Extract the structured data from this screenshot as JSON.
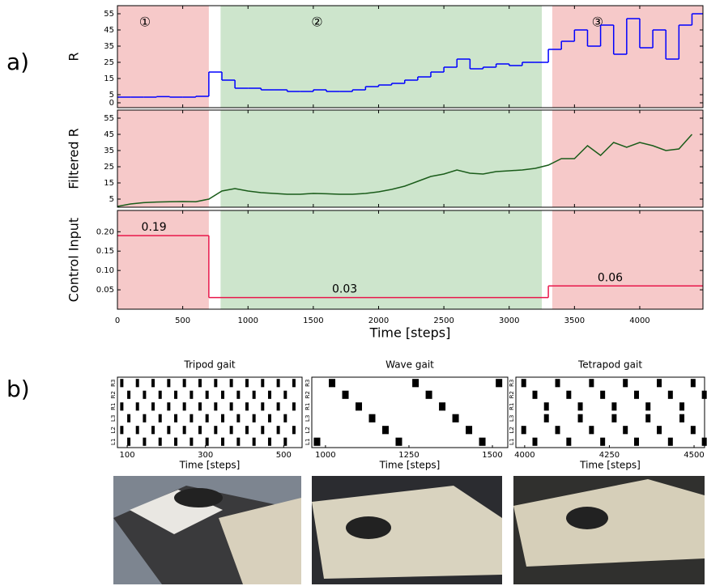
{
  "panel_labels": [
    "a)",
    "b)"
  ],
  "chart_data": [
    {
      "type": "step",
      "ylabel": "R",
      "xlim": [
        0,
        4484
      ],
      "ylim": [
        -3,
        60
      ],
      "yticks": [
        0,
        5,
        15,
        25,
        35,
        45,
        55
      ],
      "regions": [
        {
          "start": 0,
          "end": 700,
          "color": "#f6c9c9",
          "label": "①"
        },
        {
          "start": 790,
          "end": 3250,
          "color": "#cde5cc",
          "label": "②"
        },
        {
          "start": 3330,
          "end": 4484,
          "color": "#f6c9c9",
          "label": "③"
        }
      ],
      "x": [
        0,
        100,
        200,
        300,
        400,
        500,
        600,
        700,
        800,
        900,
        1000,
        1100,
        1200,
        1300,
        1400,
        1500,
        1600,
        1700,
        1800,
        1900,
        2000,
        2100,
        2200,
        2300,
        2400,
        2500,
        2600,
        2700,
        2800,
        2900,
        3000,
        3100,
        3200,
        3300,
        3400,
        3500,
        3600,
        3700,
        3800,
        3900,
        4000,
        4100,
        4200,
        4300,
        4400
      ],
      "series": [
        {
          "color": "#0000ff",
          "values": [
            3.5,
            3.5,
            3.5,
            3.8,
            3.5,
            3.5,
            4,
            19,
            14,
            9,
            9,
            8,
            8,
            7,
            7,
            8,
            7,
            7,
            8,
            10,
            11,
            12,
            14,
            16,
            19,
            22,
            27,
            21,
            22,
            24,
            23,
            25,
            25,
            33,
            38,
            45,
            35,
            48,
            30,
            52,
            34,
            45,
            27,
            48,
            55
          ]
        }
      ]
    },
    {
      "type": "line",
      "ylabel": "Filtered R",
      "xlim": [
        0,
        4484
      ],
      "ylim": [
        0,
        60
      ],
      "yticks": [
        5,
        15,
        25,
        35,
        45,
        55
      ],
      "regions": [
        {
          "start": 0,
          "end": 700,
          "color": "#f6c9c9"
        },
        {
          "start": 790,
          "end": 3250,
          "color": "#cde5cc"
        },
        {
          "start": 3330,
          "end": 4484,
          "color": "#f6c9c9"
        }
      ],
      "x": [
        0,
        100,
        200,
        300,
        400,
        500,
        600,
        700,
        800,
        900,
        1000,
        1100,
        1200,
        1300,
        1400,
        1500,
        1600,
        1700,
        1800,
        1900,
        2000,
        2100,
        2200,
        2300,
        2400,
        2500,
        2600,
        2700,
        2800,
        2900,
        3000,
        3100,
        3200,
        3300,
        3400,
        3500,
        3600,
        3700,
        3800,
        3900,
        4000,
        4100,
        4200,
        4300,
        4400
      ],
      "series": [
        {
          "color": "#1a5c1a",
          "values": [
            0.5,
            2,
            2.8,
            3.2,
            3.4,
            3.5,
            3.4,
            5,
            10,
            11.5,
            10,
            9,
            8.5,
            8,
            8,
            8.5,
            8.3,
            8,
            8,
            8.5,
            9.5,
            11,
            13,
            16,
            19,
            20.5,
            23,
            21,
            20.5,
            22,
            22.5,
            23,
            24,
            26,
            30,
            30,
            38,
            32,
            40,
            37,
            40,
            38,
            35,
            36,
            45
          ]
        }
      ]
    },
    {
      "type": "step",
      "ylabel": "Control Input",
      "xlabel": "Time [steps]",
      "xlim": [
        0,
        4484
      ],
      "ylim": [
        0,
        0.255
      ],
      "xticks": [
        0,
        500,
        1000,
        1500,
        2000,
        2500,
        3000,
        3500,
        4000
      ],
      "yticks": [
        0.05,
        {
          "value": 0.1,
          "label": "0.10"
        },
        0.15,
        {
          "value": 0.2,
          "label": "0.20"
        }
      ],
      "regions": [
        {
          "start": 0,
          "end": 700,
          "color": "#f6c9c9"
        },
        {
          "start": 790,
          "end": 3250,
          "color": "#cde5cc"
        },
        {
          "start": 3330,
          "end": 4484,
          "color": "#f6c9c9"
        }
      ],
      "x": [
        0,
        700,
        3300
      ],
      "series": [
        {
          "color": "#e8174a",
          "values": [
            0.19,
            0.03,
            0.06
          ]
        }
      ],
      "data_labels": true
    },
    {
      "type": "gait",
      "title": "Tripod gait",
      "xlabel": "Time [steps]",
      "xlim": [
        75,
        547
      ],
      "xticks": [
        100,
        300,
        500
      ],
      "series": [
        {
          "name": "L1",
          "values": [
            100,
            140,
            180,
            220,
            260,
            300,
            340,
            380,
            420,
            460,
            500
          ]
        },
        {
          "name": "L2",
          "values": [
            82,
            122,
            162,
            202,
            242,
            282,
            322,
            362,
            402,
            442,
            482,
            522
          ]
        },
        {
          "name": "L3",
          "values": [
            100,
            140,
            180,
            220,
            260,
            300,
            340,
            380,
            420,
            460,
            500
          ]
        },
        {
          "name": "R1",
          "values": [
            82,
            122,
            162,
            202,
            242,
            282,
            322,
            362,
            402,
            442,
            482,
            522
          ]
        },
        {
          "name": "R2",
          "values": [
            100,
            140,
            180,
            220,
            260,
            300,
            340,
            380,
            420,
            460,
            500
          ]
        },
        {
          "name": "R3",
          "values": [
            82,
            122,
            162,
            202,
            242,
            282,
            322,
            362,
            402,
            442,
            482,
            522
          ]
        }
      ]
    },
    {
      "type": "gait",
      "title": "Wave gait",
      "xlabel": "Time [steps]",
      "xlim": [
        959,
        1546
      ],
      "xticks": [
        1000,
        1250,
        1500
      ],
      "series": [
        {
          "name": "L1",
          "values": [
            965,
            1210,
            1460
          ]
        },
        {
          "name": "L2",
          "values": [
            1170,
            1420
          ]
        },
        {
          "name": "L3",
          "values": [
            1130,
            1380
          ]
        },
        {
          "name": "R1",
          "values": [
            1090,
            1340
          ]
        },
        {
          "name": "R2",
          "values": [
            1050,
            1300
          ]
        },
        {
          "name": "R3",
          "values": [
            1010,
            1260,
            1510
          ]
        }
      ]
    },
    {
      "type": "gait",
      "title": "Tetrapod gait",
      "xlabel": "Time [steps]",
      "xlim": [
        3974,
        4531
      ],
      "xticks": [
        4000,
        4250,
        4500
      ],
      "series": [
        {
          "name": "L1",
          "values": [
            4023,
            4123,
            4223,
            4323,
            4423,
            4523
          ]
        },
        {
          "name": "L2",
          "values": [
            3990,
            4090,
            4190,
            4290,
            4390,
            4490
          ]
        },
        {
          "name": "L3",
          "values": [
            4057,
            4157,
            4257,
            4357,
            4457
          ]
        },
        {
          "name": "R1",
          "values": [
            4057,
            4157,
            4257,
            4357,
            4457
          ]
        },
        {
          "name": "R2",
          "values": [
            4023,
            4123,
            4223,
            4323,
            4423,
            4523
          ]
        },
        {
          "name": "R3",
          "values": [
            3990,
            4090,
            4190,
            4290,
            4390,
            4490
          ]
        }
      ]
    }
  ]
}
